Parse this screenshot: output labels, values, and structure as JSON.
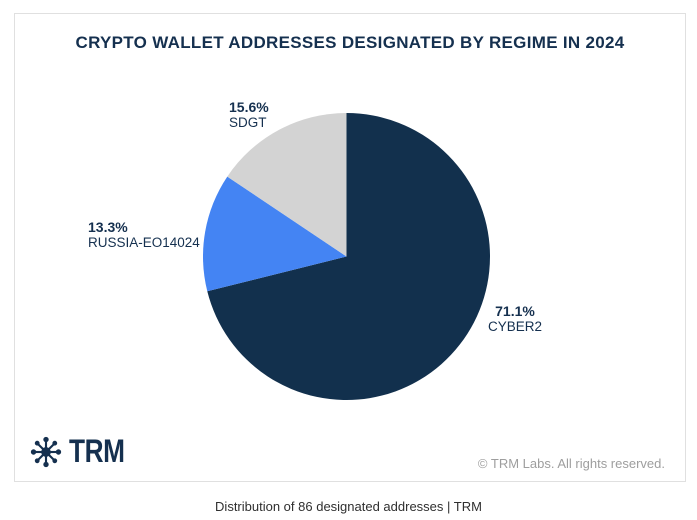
{
  "card": {
    "title": "CRYPTO WALLET ADDRESSES DESIGNATED BY REGIME IN 2024",
    "logo_text": "TRM",
    "copyright": "© TRM Labs. All rights reserved."
  },
  "caption": "Distribution of 86 designated addresses | TRM",
  "chart_data": {
    "type": "pie",
    "title": "CRYPTO WALLET ADDRESSES DESIGNATED BY REGIME IN 2024",
    "total_designated_addresses": 86,
    "slices": [
      {
        "label": "CYBER2",
        "percent": 71.1,
        "pct_text": "71.1%",
        "color": "#12304d"
      },
      {
        "label": "RUSSIA-EO14024",
        "percent": 13.3,
        "pct_text": "13.3%",
        "color": "#4484f3"
      },
      {
        "label": "SDGT",
        "percent": 15.6,
        "pct_text": "15.6%",
        "color": "#d3d3d3"
      }
    ],
    "start_angle_deg": 0,
    "direction": "clockwise",
    "labels": "outside",
    "legend": "none"
  },
  "colors": {
    "title_text": "#15304f",
    "label_text": "#15304f",
    "card_border": "#e0e0e0",
    "copyright_text": "#9e9e9e",
    "caption_text": "#2f2f2f",
    "background": "#ffffff"
  }
}
